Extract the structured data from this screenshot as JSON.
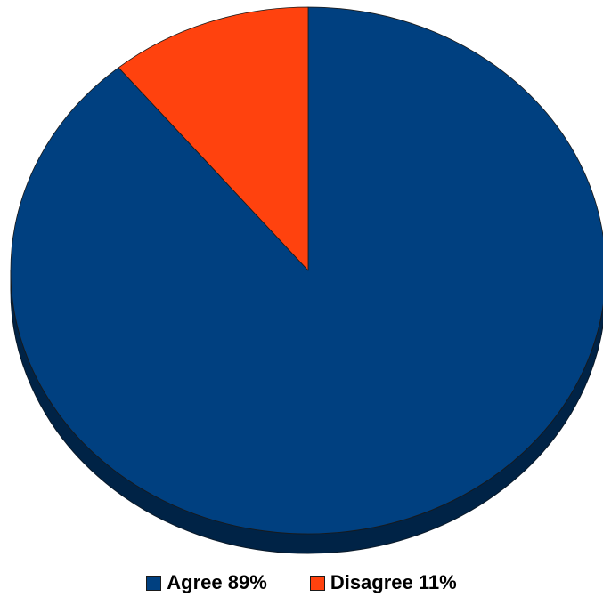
{
  "chart_data": {
    "type": "pie",
    "title": "",
    "style": "3d",
    "slices": [
      {
        "label": "Agree",
        "value": 89,
        "legend_text": "Agree 89%",
        "color": "#004080"
      },
      {
        "label": "Disagree",
        "value": 11,
        "legend_text": "Disagree 11%",
        "color": "#ff420e"
      }
    ],
    "start_angle": "12 o'clock",
    "direction": "clockwise",
    "legend_placement": "bottom"
  }
}
